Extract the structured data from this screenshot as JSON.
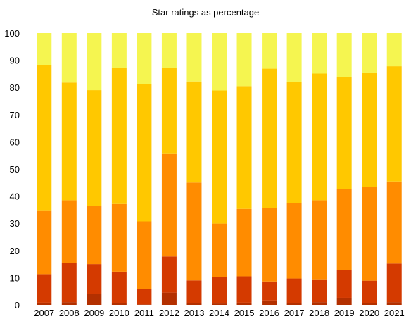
{
  "chart_data": {
    "type": "bar",
    "stacked": true,
    "title": "Star ratings as percentage",
    "xlabel": "",
    "ylabel": "",
    "ylim": [
      0,
      100
    ],
    "yticks": [
      0,
      10,
      20,
      30,
      40,
      50,
      60,
      70,
      80,
      90,
      100
    ],
    "grid": false,
    "legend": "none",
    "categories": [
      "2007",
      "2008",
      "2009",
      "2010",
      "2011",
      "2012",
      "2013",
      "2014",
      "2015",
      "2016",
      "2017",
      "2018",
      "2019",
      "2020",
      "2021"
    ],
    "series": [
      {
        "color": "#b33000",
        "values": [
          0.8,
          1.0,
          4.0,
          0.6,
          0.2,
          4.5,
          0.6,
          0.5,
          0.8,
          1.6,
          0.7,
          1.0,
          2.6,
          0.6,
          1.0
        ]
      },
      {
        "color": "#d43a00",
        "values": [
          10.5,
          14.5,
          11.0,
          11.6,
          5.5,
          13.3,
          8.4,
          9.7,
          9.7,
          7.0,
          9.0,
          8.4,
          10.1,
          8.3,
          14.2
        ]
      },
      {
        "color": "#ff8c00",
        "values": [
          23.5,
          23.0,
          21.4,
          24.9,
          25.0,
          37.7,
          36.0,
          19.7,
          24.8,
          27.0,
          27.8,
          29.1,
          30.0,
          34.5,
          30.2
        ]
      },
      {
        "color": "#ffc800",
        "values": [
          53.4,
          43.3,
          42.6,
          50.2,
          50.6,
          31.8,
          37.2,
          49.0,
          45.2,
          51.3,
          44.5,
          46.6,
          41.0,
          42.1,
          42.4
        ]
      },
      {
        "color": "#f5f550",
        "values": [
          11.8,
          18.2,
          21.0,
          12.7,
          18.7,
          12.7,
          17.8,
          21.1,
          19.5,
          13.1,
          18.0,
          14.9,
          16.3,
          14.5,
          12.2
        ]
      }
    ]
  }
}
